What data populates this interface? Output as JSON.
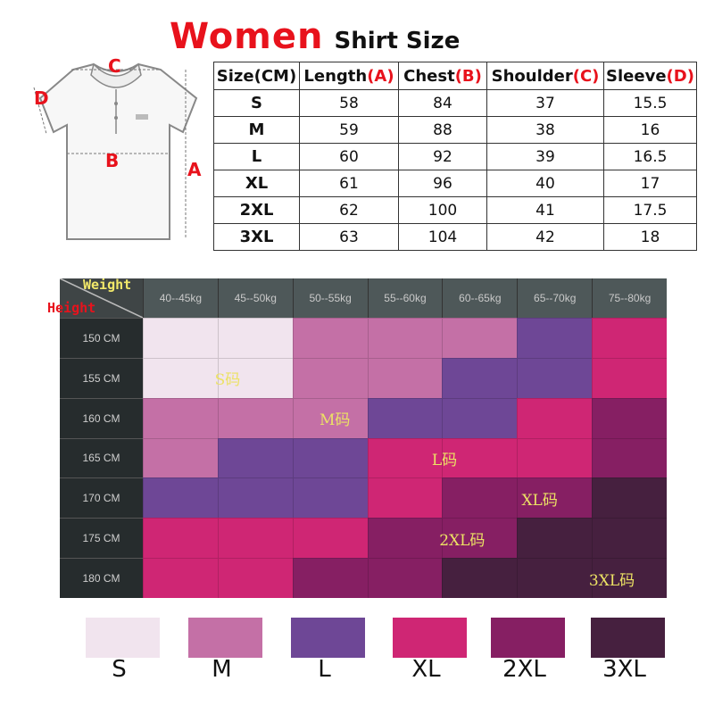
{
  "header": {
    "title_main": "Women",
    "title_rest": "Shirt Size"
  },
  "diagram": {
    "labels": {
      "a": "A",
      "b": "B",
      "c": "C",
      "d": "D"
    }
  },
  "size_table": {
    "headers": [
      {
        "name": "Size(CM)",
        "code": ""
      },
      {
        "name": "Length",
        "code": "(A)"
      },
      {
        "name": "Chest",
        "code": "(B)"
      },
      {
        "name": "Shoulder",
        "code": "(C)"
      },
      {
        "name": "Sleeve",
        "code": "(D)"
      }
    ],
    "rows": [
      [
        "S",
        "58",
        "84",
        "37",
        "15.5"
      ],
      [
        "M",
        "59",
        "88",
        "38",
        "16"
      ],
      [
        "L",
        "60",
        "92",
        "39",
        "16.5"
      ],
      [
        "XL",
        "61",
        "96",
        "40",
        "17"
      ],
      [
        "2XL",
        "62",
        "100",
        "41",
        "17.5"
      ],
      [
        "3XL",
        "63",
        "104",
        "42",
        "18"
      ]
    ]
  },
  "grid": {
    "corner": {
      "weight": "Weight",
      "height": "Height"
    },
    "weight_ranges": [
      "40--45kg",
      "45--50kg",
      "50--55kg",
      "55--60kg",
      "60--65kg",
      "65--70kg",
      "75--80kg"
    ],
    "height_ranges": [
      "150 CM",
      "155 CM",
      "160 CM",
      "165 CM",
      "170 CM",
      "175 CM",
      "180 CM"
    ],
    "cells": [
      [
        "S",
        "S",
        "M",
        "M",
        "M",
        "L",
        "XL"
      ],
      [
        "S",
        "S",
        "M",
        "M",
        "L",
        "L",
        "XL"
      ],
      [
        "M",
        "M",
        "M",
        "L",
        "L",
        "XL",
        "2XL"
      ],
      [
        "M",
        "L",
        "L",
        "XL",
        "XL",
        "XL",
        "2XL"
      ],
      [
        "L",
        "L",
        "L",
        "XL",
        "2XL",
        "2XL",
        "3XL"
      ],
      [
        "XL",
        "XL",
        "XL",
        "2XL",
        "2XL",
        "3XL",
        "3XL"
      ],
      [
        "XL",
        "XL",
        "2XL",
        "2XL",
        "3XL",
        "3XL",
        "3XL"
      ]
    ],
    "zone_labels": [
      "S码",
      "M码",
      "L码",
      "XL码",
      "2XL码",
      "3XL码"
    ]
  },
  "legend": [
    {
      "size": "S",
      "color": "#f1e4ee"
    },
    {
      "size": "M",
      "color": "#c470a6"
    },
    {
      "size": "L",
      "color": "#6e4796"
    },
    {
      "size": "XL",
      "color": "#cf2674"
    },
    {
      "size": "2XL",
      "color": "#861f63"
    },
    {
      "size": "3XL",
      "color": "#46203f"
    }
  ]
}
